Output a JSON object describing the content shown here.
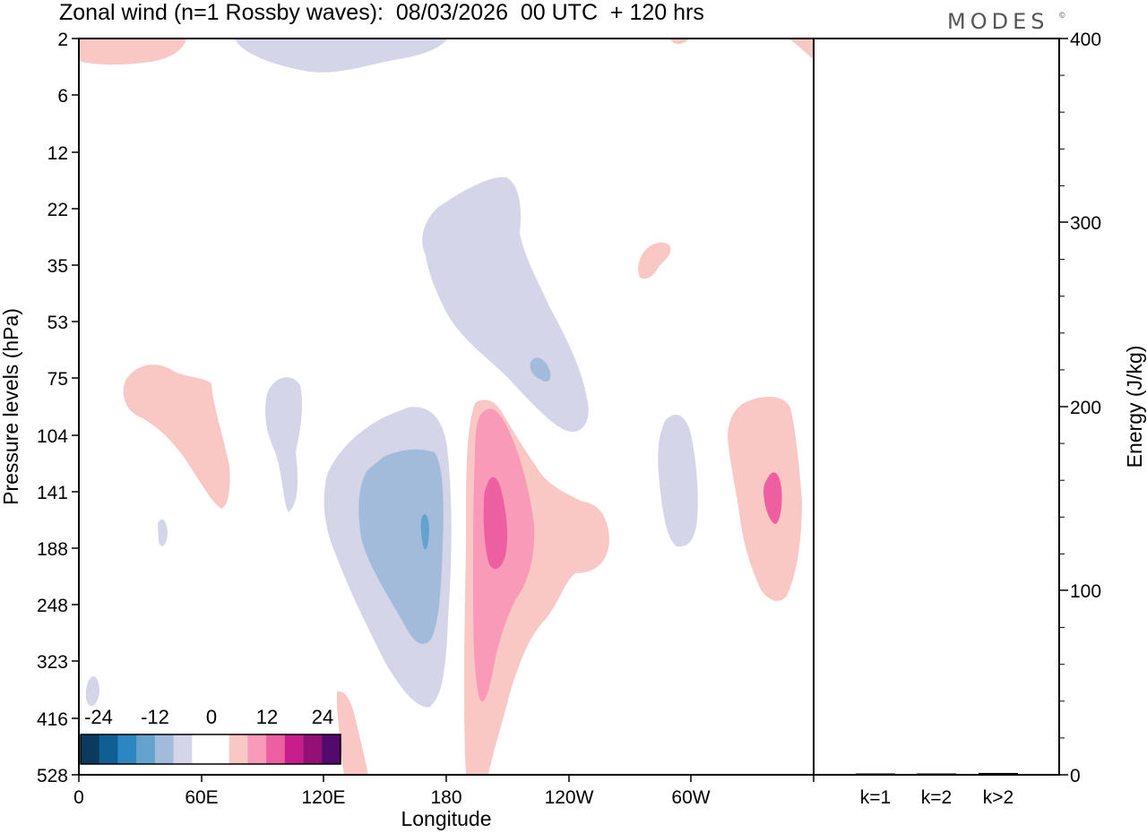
{
  "chart_data": {
    "type": "heatmap",
    "title": "Zonal wind (n=1 Rossby waves):  08/03/2026  00 UTC  + 120 hrs",
    "logo": "MODES",
    "logo_mark": "©",
    "xlabel": "Longitude",
    "ylabel": "Pressure levels (hPa)",
    "x_ticks": [
      "0",
      "60E",
      "120E",
      "180",
      "120W",
      "60W"
    ],
    "y_ticks": [
      "2",
      "6",
      "12",
      "22",
      "35",
      "53",
      "75",
      "104",
      "141",
      "188",
      "248",
      "323",
      "416",
      "528"
    ],
    "colorbar": {
      "labels": [
        "-24",
        "-12",
        "0",
        "12",
        "24"
      ],
      "colors": [
        "#0b3a5e",
        "#0f5f95",
        "#2b86c2",
        "#65a3cf",
        "#a3bbdb",
        "#d4d5e8",
        "#ffffff",
        "#ffffff",
        "#fac8c4",
        "#f99ab8",
        "#ee5fa2",
        "#c81e8c",
        "#931177",
        "#520a6d"
      ]
    },
    "energy_panel": {
      "ylabel": "Energy (J/kg)",
      "ylim": [
        0,
        400
      ],
      "y_ticks": [
        "0",
        "100",
        "200",
        "300",
        "400"
      ],
      "categories": [
        "k=1",
        "k=2",
        "k>2"
      ],
      "values": [
        0.3,
        0.2,
        1.0
      ]
    },
    "regions": [
      {
        "id": "stratosphere-low-top",
        "color": "#d4d5e8",
        "sign": "negative"
      },
      {
        "id": "stratosphere-dipole-negative",
        "color": "#d4d5e8",
        "sign": "negative"
      },
      {
        "id": "upper-trough-core",
        "color": "#a3bbdb",
        "sign": "negative"
      },
      {
        "id": "upper-ridge-core",
        "color": "#f99ab8",
        "sign": "positive"
      },
      {
        "id": "upper-ridge-max",
        "color": "#ee5fa2",
        "sign": "positive"
      }
    ]
  }
}
